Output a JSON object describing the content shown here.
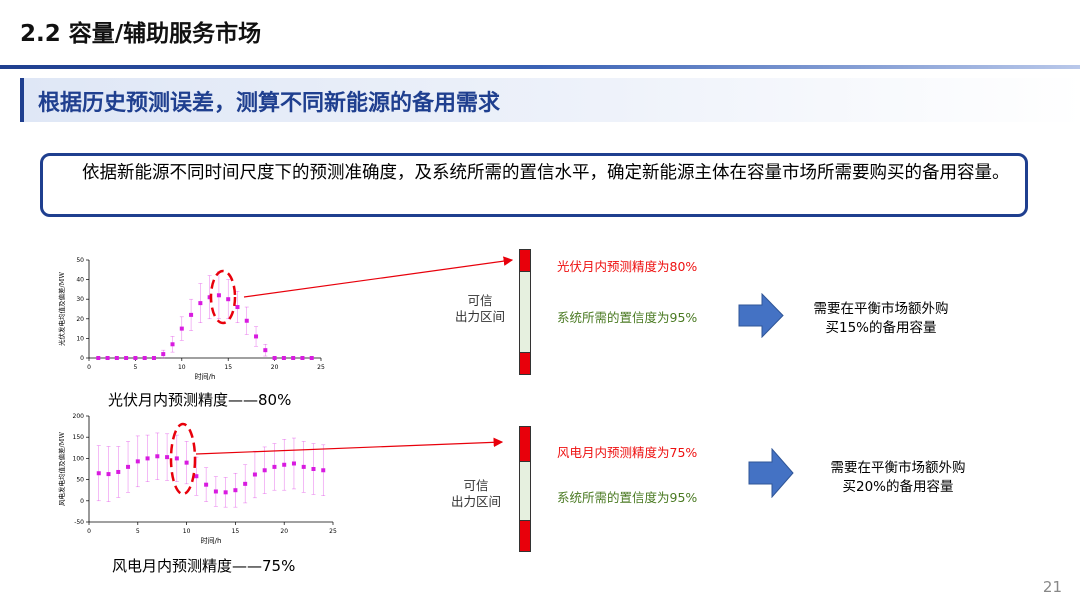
{
  "header": {
    "title": "2.2 容量/辅助服务市场"
  },
  "subtitle": "根据历史预测误差，测算不同新能源的备用需求",
  "description": "依据新能源不同时间尺度下的预测准确度，及系统所需的置信水平，确定新能源主体在容量市场所需要购买的备用容量。",
  "colors": {
    "accent": "#1f3f8f",
    "marker": "#d81be0",
    "bar_red": "#e8000b",
    "bar_mid": "#e6f0df",
    "arrow": "#4472c4"
  },
  "pv": {
    "caption": "光伏月内预测精度——80%",
    "precision_label": "光伏月内预测精度为80%",
    "confidence_label": "系统所需的置信度为95%",
    "interval_label_1": "可信",
    "interval_label_2": "出力区间",
    "need_line1": "需要在平衡市场额外购",
    "need_line2": "买15%的备用容量"
  },
  "wind": {
    "caption": "风电月内预测精度——75%",
    "precision_label": "风电月内预测精度为75%",
    "confidence_label": "系统所需的置信度为95%",
    "interval_label_1": "可信",
    "interval_label_2": "出力区间",
    "need_line1": "需要在平衡市场额外购",
    "need_line2": "买20%的备用容量"
  },
  "chart_data": [
    {
      "type": "scatter",
      "ylabel": "光伏发电均值及偏差/MW",
      "xlabel": "时间/h",
      "xlim": [
        0,
        25
      ],
      "ylim": [
        0,
        50
      ],
      "xticks": [
        0,
        5,
        10,
        15,
        20,
        25
      ],
      "yticks": [
        0,
        10,
        20,
        30,
        40,
        50
      ],
      "x": [
        1,
        2,
        3,
        4,
        5,
        6,
        7,
        8,
        9,
        10,
        11,
        12,
        13,
        14,
        15,
        16,
        17,
        18,
        19,
        20,
        21,
        22,
        23,
        24
      ],
      "values": [
        0,
        0,
        0,
        0,
        0,
        0,
        0,
        2,
        7,
        15,
        22,
        28,
        31,
        32,
        30,
        26,
        19,
        11,
        4,
        0,
        0,
        0,
        0,
        0
      ],
      "error": [
        0,
        0,
        0,
        0,
        0,
        0,
        0,
        2,
        4,
        6,
        8,
        10,
        11,
        12,
        10,
        8,
        7,
        5,
        3,
        0,
        0,
        0,
        0,
        0
      ]
    },
    {
      "type": "scatter",
      "ylabel": "风电发电均值及偏差/MW",
      "xlabel": "时间/h",
      "xlim": [
        0,
        25
      ],
      "ylim": [
        -50,
        200
      ],
      "xticks": [
        0,
        5,
        10,
        15,
        20,
        25
      ],
      "yticks": [
        -50,
        0,
        50,
        100,
        150,
        200
      ],
      "x": [
        1,
        2,
        3,
        4,
        5,
        6,
        7,
        8,
        9,
        10,
        11,
        12,
        13,
        14,
        15,
        16,
        17,
        18,
        19,
        20,
        21,
        22,
        23,
        24
      ],
      "values": [
        65,
        63,
        68,
        80,
        93,
        100,
        105,
        103,
        100,
        90,
        58,
        38,
        22,
        20,
        25,
        40,
        62,
        72,
        80,
        85,
        88,
        80,
        75,
        72
      ],
      "error": [
        65,
        65,
        60,
        60,
        60,
        55,
        55,
        55,
        55,
        50,
        45,
        40,
        35,
        35,
        40,
        45,
        55,
        55,
        55,
        60,
        60,
        60,
        60,
        60
      ]
    }
  ],
  "page_number": "21"
}
